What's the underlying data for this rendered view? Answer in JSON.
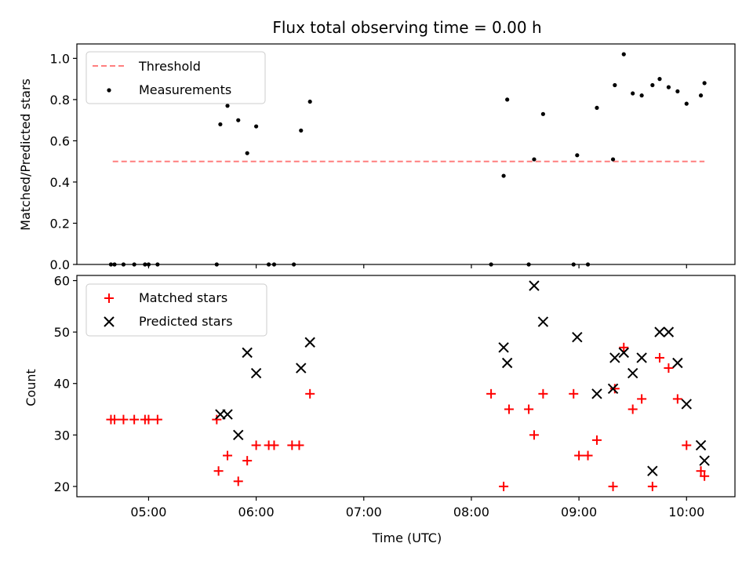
{
  "chart_data": [
    {
      "type": "scatter",
      "title": "Flux total observing time = 0.00 h",
      "xlabel": "",
      "ylabel": "Matched/Predicted stars",
      "xlim": [
        "04:20",
        "10:27"
      ],
      "ylim": [
        0,
        1.07
      ],
      "x_ticks": [
        "05:00",
        "06:00",
        "07:00",
        "08:00",
        "09:00",
        "10:00"
      ],
      "y_ticks": [
        0.0,
        0.2,
        0.4,
        0.6,
        0.8,
        1.0
      ],
      "y_tick_labels": [
        "0.0",
        "0.2",
        "0.4",
        "0.6",
        "0.8",
        "1.0"
      ],
      "legend": {
        "placement": "upper-left",
        "entries": [
          {
            "label": "Threshold",
            "color": "#ff7f7f",
            "marker": "dashed-line"
          },
          {
            "label": "Measurements",
            "color": "#000000",
            "marker": "dot"
          }
        ]
      },
      "threshold": {
        "y": 0.5,
        "x_start": "04:40",
        "x_end": "10:10",
        "color": "#ff7f7f"
      },
      "series": [
        {
          "name": "Measurements",
          "color": "#000000",
          "points": [
            [
              "04:39",
              0.0
            ],
            [
              "04:41",
              0.0
            ],
            [
              "04:46",
              0.0
            ],
            [
              "04:52",
              0.0
            ],
            [
              "04:58",
              0.0
            ],
            [
              "05:00",
              0.0
            ],
            [
              "05:05",
              0.0
            ],
            [
              "05:38",
              0.0
            ],
            [
              "05:40",
              0.68
            ],
            [
              "05:44",
              0.77
            ],
            [
              "05:50",
              0.7
            ],
            [
              "05:55",
              0.54
            ],
            [
              "06:00",
              0.67
            ],
            [
              "06:07",
              0.0
            ],
            [
              "06:10",
              0.0
            ],
            [
              "06:21",
              0.0
            ],
            [
              "06:25",
              0.65
            ],
            [
              "06:30",
              0.79
            ],
            [
              "08:11",
              0.0
            ],
            [
              "08:18",
              0.43
            ],
            [
              "08:20",
              0.8
            ],
            [
              "08:32",
              0.0
            ],
            [
              "08:35",
              0.51
            ],
            [
              "08:40",
              0.73
            ],
            [
              "08:57",
              0.0
            ],
            [
              "08:59",
              0.53
            ],
            [
              "09:05",
              0.0
            ],
            [
              "09:10",
              0.76
            ],
            [
              "09:19",
              0.51
            ],
            [
              "09:20",
              0.87
            ],
            [
              "09:25",
              1.02
            ],
            [
              "09:30",
              0.83
            ],
            [
              "09:35",
              0.82
            ],
            [
              "09:41",
              0.87
            ],
            [
              "09:45",
              0.9
            ],
            [
              "09:50",
              0.86
            ],
            [
              "09:55",
              0.84
            ],
            [
              "10:00",
              0.78
            ],
            [
              "10:08",
              0.82
            ],
            [
              "10:10",
              0.88
            ]
          ]
        }
      ]
    },
    {
      "type": "scatter",
      "title": "",
      "xlabel": "Time (UTC)",
      "ylabel": "Count",
      "xlim": [
        "04:20",
        "10:27"
      ],
      "ylim": [
        18,
        61
      ],
      "x_ticks": [
        "05:00",
        "06:00",
        "07:00",
        "08:00",
        "09:00",
        "10:00"
      ],
      "x_tick_labels": [
        "05:00",
        "06:00",
        "07:00",
        "08:00",
        "09:00",
        "10:00"
      ],
      "y_ticks": [
        20,
        30,
        40,
        50,
        60
      ],
      "y_tick_labels": [
        "20",
        "30",
        "40",
        "50",
        "60"
      ],
      "legend": {
        "placement": "upper-left",
        "entries": [
          {
            "label": "Matched stars",
            "color": "#ff0000",
            "marker": "plus"
          },
          {
            "label": "Predicted stars",
            "color": "#000000",
            "marker": "x"
          }
        ]
      },
      "series": [
        {
          "name": "Matched stars",
          "color": "#ff0000",
          "marker": "plus",
          "points": [
            [
              "04:39",
              33
            ],
            [
              "04:41",
              33
            ],
            [
              "04:46",
              33
            ],
            [
              "04:52",
              33
            ],
            [
              "04:58",
              33
            ],
            [
              "05:00",
              33
            ],
            [
              "05:05",
              33
            ],
            [
              "05:38",
              33
            ],
            [
              "05:39",
              23
            ],
            [
              "05:44",
              26
            ],
            [
              "05:50",
              21
            ],
            [
              "05:55",
              25
            ],
            [
              "06:00",
              28
            ],
            [
              "06:07",
              28
            ],
            [
              "06:10",
              28
            ],
            [
              "06:20",
              28
            ],
            [
              "06:24",
              28
            ],
            [
              "06:30",
              38
            ],
            [
              "08:11",
              38
            ],
            [
              "08:18",
              20
            ],
            [
              "08:21",
              35
            ],
            [
              "08:32",
              35
            ],
            [
              "08:35",
              30
            ],
            [
              "08:40",
              38
            ],
            [
              "08:57",
              38
            ],
            [
              "09:00",
              26
            ],
            [
              "09:05",
              26
            ],
            [
              "09:10",
              29
            ],
            [
              "09:19",
              20
            ],
            [
              "09:20",
              39
            ],
            [
              "09:25",
              47
            ],
            [
              "09:30",
              35
            ],
            [
              "09:35",
              37
            ],
            [
              "09:41",
              20
            ],
            [
              "09:45",
              45
            ],
            [
              "09:50",
              43
            ],
            [
              "09:55",
              37
            ],
            [
              "10:00",
              28
            ],
            [
              "10:08",
              23
            ],
            [
              "10:10",
              22
            ]
          ]
        },
        {
          "name": "Predicted stars",
          "color": "#000000",
          "marker": "x",
          "points": [
            [
              "05:40",
              34
            ],
            [
              "05:44",
              34
            ],
            [
              "05:50",
              30
            ],
            [
              "05:55",
              46
            ],
            [
              "06:00",
              42
            ],
            [
              "06:25",
              43
            ],
            [
              "06:30",
              48
            ],
            [
              "08:18",
              47
            ],
            [
              "08:20",
              44
            ],
            [
              "08:35",
              59
            ],
            [
              "08:40",
              52
            ],
            [
              "08:59",
              49
            ],
            [
              "09:10",
              38
            ],
            [
              "09:19",
              39
            ],
            [
              "09:20",
              45
            ],
            [
              "09:25",
              46
            ],
            [
              "09:30",
              42
            ],
            [
              "09:35",
              45
            ],
            [
              "09:41",
              23
            ],
            [
              "09:45",
              50
            ],
            [
              "09:50",
              50
            ],
            [
              "09:55",
              44
            ],
            [
              "10:00",
              36
            ],
            [
              "10:08",
              28
            ],
            [
              "10:10",
              25
            ]
          ]
        }
      ]
    }
  ]
}
